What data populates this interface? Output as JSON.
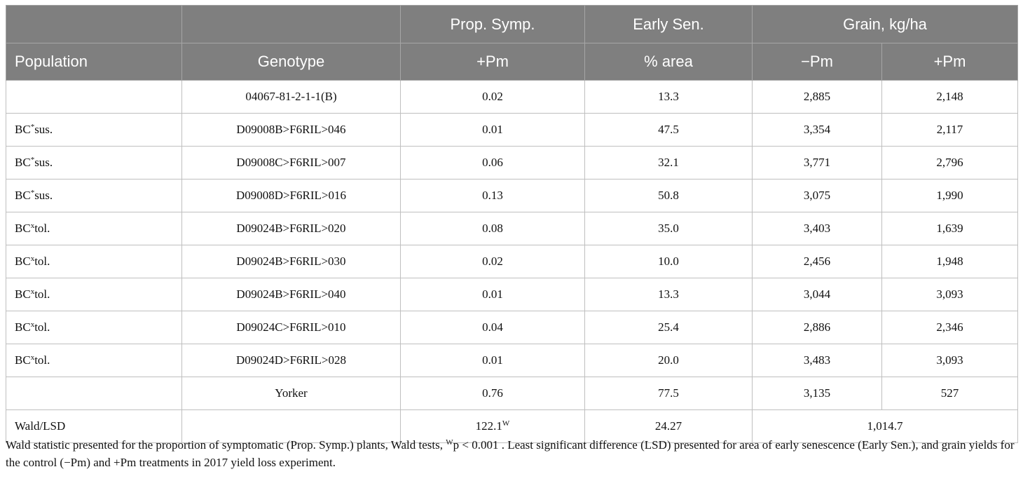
{
  "header": {
    "prop_symp": "Prop. Symp.",
    "early_sen": "Early Sen.",
    "grain": "Grain, kg/ha",
    "population": "Population",
    "genotype": "Genotype",
    "prop_symp_sub": "+Pm",
    "early_sen_sub": "% area",
    "grain_minus": "−Pm",
    "grain_plus": "+Pm"
  },
  "rows": [
    {
      "pop_prefix": "",
      "pop_sup": "",
      "pop_suffix": "",
      "genotype": "04067-81-2-1-1(B)",
      "prop": "0.02",
      "sen": "13.3",
      "minus": "2,885",
      "plus": "2,148"
    },
    {
      "pop_prefix": "BC",
      "pop_sup": "*",
      "pop_suffix": "sus.",
      "genotype": "D09008B>F6RIL>046",
      "prop": "0.01",
      "sen": "47.5",
      "minus": "3,354",
      "plus": "2,117"
    },
    {
      "pop_prefix": "BC",
      "pop_sup": "*",
      "pop_suffix": "sus.",
      "genotype": "D09008C>F6RIL>007",
      "prop": "0.06",
      "sen": "32.1",
      "minus": "3,771",
      "plus": "2,796"
    },
    {
      "pop_prefix": "BC",
      "pop_sup": "*",
      "pop_suffix": "sus.",
      "genotype": "D09008D>F6RIL>016",
      "prop": "0.13",
      "sen": "50.8",
      "minus": "3,075",
      "plus": "1,990"
    },
    {
      "pop_prefix": "BC",
      "pop_sup": "x",
      "pop_suffix": "tol.",
      "genotype": "D09024B>F6RIL>020",
      "prop": "0.08",
      "sen": "35.0",
      "minus": "3,403",
      "plus": "1,639"
    },
    {
      "pop_prefix": "BC",
      "pop_sup": "x",
      "pop_suffix": "tol.",
      "genotype": "D09024B>F6RIL>030",
      "prop": "0.02",
      "sen": "10.0",
      "minus": "2,456",
      "plus": "1,948"
    },
    {
      "pop_prefix": "BC",
      "pop_sup": "x",
      "pop_suffix": "tol.",
      "genotype": "D09024B>F6RIL>040",
      "prop": "0.01",
      "sen": "13.3",
      "minus": "3,044",
      "plus": "3,093"
    },
    {
      "pop_prefix": "BC",
      "pop_sup": "x",
      "pop_suffix": "tol.",
      "genotype": "D09024C>F6RIL>010",
      "prop": "0.04",
      "sen": "25.4",
      "minus": "2,886",
      "plus": "2,346"
    },
    {
      "pop_prefix": "BC",
      "pop_sup": "x",
      "pop_suffix": "tol.",
      "genotype": "D09024D>F6RIL>028",
      "prop": "0.01",
      "sen": "20.0",
      "minus": "3,483",
      "plus": "3,093"
    },
    {
      "pop_prefix": "",
      "pop_sup": "",
      "pop_suffix": "",
      "genotype": "Yorker",
      "prop": "0.76",
      "sen": "77.5",
      "minus": "3,135",
      "plus": "527"
    }
  ],
  "footer_row": {
    "label": "Wald/LSD",
    "prop_value": "122.1",
    "prop_sup": "W",
    "sen_value": "24.27",
    "grain_value": "1,014.7"
  },
  "footnote": {
    "part1": "Wald statistic presented for the proportion of symptomatic (Prop. Symp.) plants, Wald tests, ",
    "sup": "W",
    "part2": "p < 0.001 . Least significant difference (LSD) presented for area of early senescence (Early Sen.), and grain yields for the control (−Pm) and +Pm treatments in 2017 yield loss experiment."
  }
}
